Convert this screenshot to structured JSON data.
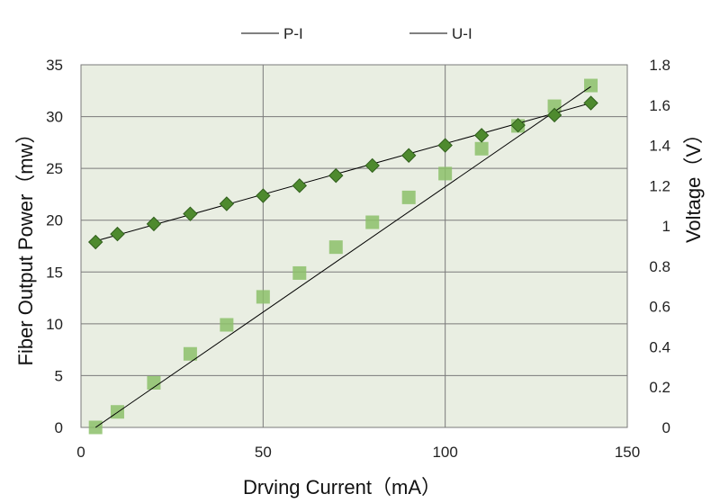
{
  "chart_data": {
    "type": "scatter",
    "xlabel": "Drving Current（mA）",
    "ylabel_left": "Fiber Output Power（mw）",
    "ylabel_right": "Voltage（V）",
    "xlim": [
      0,
      150
    ],
    "ylim_left": [
      0,
      35
    ],
    "ylim_right": [
      0,
      1.8
    ],
    "x_ticks": [
      "0",
      "50",
      "100",
      "150"
    ],
    "y_left_ticks": [
      "0",
      "5",
      "10",
      "15",
      "20",
      "25",
      "30",
      "35"
    ],
    "y_right_ticks": [
      "0",
      "0.2",
      "0.4",
      "0.6",
      "0.8",
      "1",
      "1.2",
      "1.4",
      "1.6",
      "1.8"
    ],
    "grid": true,
    "legend_position": "top-center",
    "colors": {
      "plot_background": "#e9eee2",
      "grid": "#7a7a7a",
      "power_marker": "#8cbf6a",
      "voltage_marker": "#4e8a2e",
      "voltage_marker_edge": "#2f5e1b",
      "fit_line": "#000000"
    },
    "legend": [
      {
        "label": "P-I",
        "series": "power"
      },
      {
        "label": "U-I",
        "series": "voltage"
      }
    ],
    "series": [
      {
        "key": "power",
        "name": "P-I",
        "axis": "left",
        "marker": "square",
        "x": [
          4,
          10,
          20,
          30,
          40,
          50,
          60,
          70,
          80,
          90,
          100,
          110,
          120,
          130,
          140
        ],
        "y": [
          0,
          1.5,
          4.3,
          7.1,
          9.9,
          12.6,
          14.9,
          17.4,
          19.8,
          22.2,
          24.5,
          26.9,
          29.1,
          31.0,
          33.0
        ]
      },
      {
        "key": "voltage",
        "name": "U-I",
        "axis": "right",
        "marker": "diamond",
        "x": [
          4,
          10,
          20,
          30,
          40,
          50,
          60,
          70,
          80,
          90,
          100,
          110,
          120,
          130,
          140
        ],
        "y": [
          0.92,
          0.96,
          1.01,
          1.06,
          1.11,
          1.15,
          1.2,
          1.25,
          1.3,
          1.35,
          1.4,
          1.45,
          1.5,
          1.55,
          1.61
        ]
      }
    ],
    "fit_lines": [
      {
        "series": "power",
        "axis": "left",
        "x": [
          4,
          140
        ],
        "y": [
          0,
          32.9
        ]
      },
      {
        "series": "voltage",
        "axis": "right",
        "x": [
          4,
          140
        ],
        "y": [
          0.925,
          1.61
        ]
      }
    ]
  }
}
